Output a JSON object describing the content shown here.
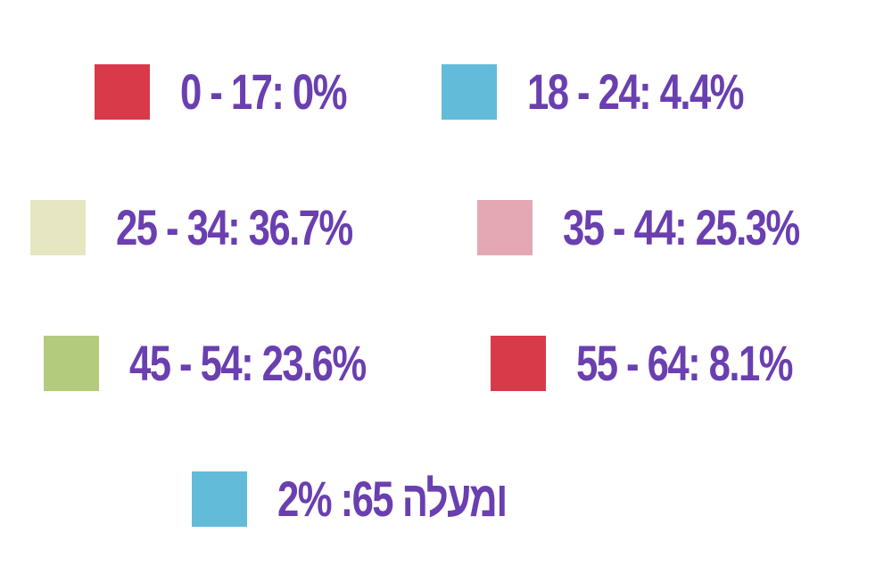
{
  "chart_data": {
    "type": "pie",
    "legend_placement": "grid",
    "categories": [
      "0 - 17",
      "18 - 24",
      "25 - 34",
      "35 - 44",
      "45 - 54",
      "55 - 64",
      "65 ומעלה"
    ],
    "values": [
      0,
      4.4,
      36.7,
      25.3,
      23.6,
      8.1,
      2
    ],
    "colors": [
      "#d93a4a",
      "#62bcd9",
      "#e6e7c2",
      "#e4a8b4",
      "#b3cb7c",
      "#d93a4a",
      "#62bcd9"
    ],
    "legend_labels": [
      "0 - 17: 0%",
      "18 - 24: 4.4%",
      "25 - 34: 36.7%",
      "35 - 44: 25.3%",
      "45 - 54: 23.6%",
      "55 - 64: 8.1%",
      "2% :65 ומעלה"
    ]
  },
  "text_color": "#6a3fb0"
}
